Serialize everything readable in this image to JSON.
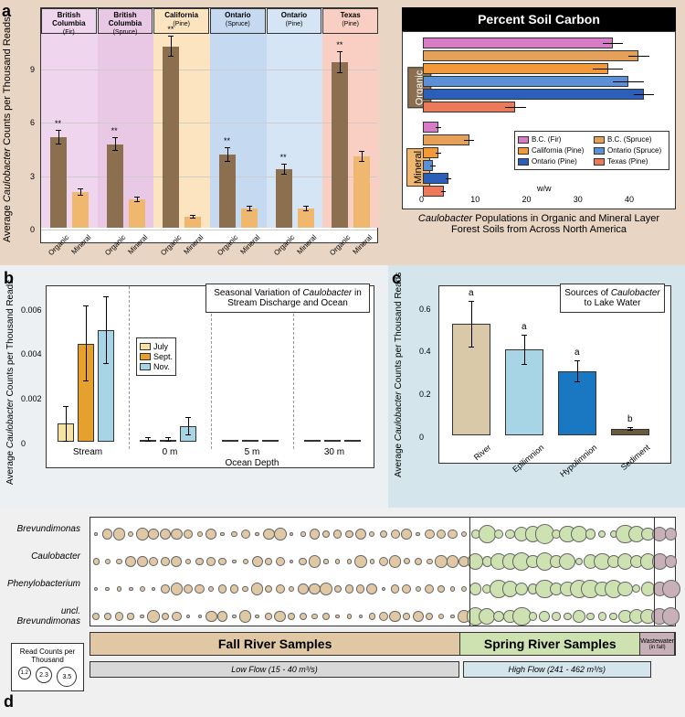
{
  "labels": {
    "a": "a",
    "b": "b",
    "c": "c",
    "d": "d"
  },
  "panelA": {
    "ylabel": "Average Caulobacter Counts per Thousand Reads",
    "yticks": [
      0,
      3,
      6,
      9
    ],
    "facets": [
      {
        "title": "British Columbia",
        "sub": "(Fir)",
        "bg": "#f0d5ee"
      },
      {
        "title": "British Columbia",
        "sub": "(Spruce)",
        "bg": "#e8c8e5"
      },
      {
        "title": "California",
        "sub": "(Pine)",
        "bg": "#fde4c0"
      },
      {
        "title": "Ontario",
        "sub": "(Spruce)",
        "bg": "#c5d9f0"
      },
      {
        "title": "Ontario",
        "sub": "(Pine)",
        "bg": "#d5e5f5"
      },
      {
        "title": "Texas",
        "sub": "(Pine)",
        "bg": "#f8cfc2"
      }
    ],
    "bars": [
      {
        "cat": "Organic",
        "val": 5.1,
        "err": 0.4,
        "sig": "**",
        "col": "#8b6f4e"
      },
      {
        "cat": "Mineral",
        "val": 2.0,
        "err": 0.2,
        "col": "#f0b86e"
      },
      {
        "cat": "Organic",
        "val": 4.7,
        "err": 0.4,
        "sig": "**",
        "col": "#8b6f4e"
      },
      {
        "cat": "Mineral",
        "val": 1.6,
        "err": 0.15,
        "col": "#f0b86e"
      },
      {
        "cat": "Organic",
        "val": 10.2,
        "err": 0.6,
        "sig": "**",
        "col": "#8b6f4e"
      },
      {
        "cat": "Mineral",
        "val": 0.6,
        "err": 0.1,
        "col": "#f0b86e"
      },
      {
        "cat": "Organic",
        "val": 4.1,
        "err": 0.4,
        "sig": "**",
        "col": "#8b6f4e"
      },
      {
        "cat": "Mineral",
        "val": 1.1,
        "err": 0.15,
        "col": "#f0b86e"
      },
      {
        "cat": "Organic",
        "val": 3.3,
        "err": 0.3,
        "sig": "**",
        "col": "#8b6f4e"
      },
      {
        "cat": "Mineral",
        "val": 1.1,
        "err": 0.15,
        "col": "#f0b86e"
      },
      {
        "cat": "Organic",
        "val": 9.3,
        "err": 0.6,
        "sig": "**",
        "col": "#8b6f4e"
      },
      {
        "cat": "Mineral",
        "val": 4.0,
        "err": 0.3,
        "col": "#f0b86e"
      }
    ],
    "right": {
      "title": "Percent Soil Carbon",
      "caption": "Caulobacter Populations in Organic and Mineral Layer Forest Soils from Across North America",
      "groups": [
        "Organic",
        "Mineral"
      ],
      "ww": "w/w",
      "xticks": [
        0,
        10,
        20,
        30,
        40
      ],
      "bars": [
        {
          "g": 0,
          "val": 37,
          "err": 2,
          "col": "#d87bc7"
        },
        {
          "g": 0,
          "val": 42,
          "err": 2,
          "col": "#e5a15a"
        },
        {
          "g": 0,
          "val": 36,
          "err": 3,
          "col": "#f29a3a"
        },
        {
          "g": 0,
          "val": 40,
          "err": 3,
          "col": "#5b8fd6"
        },
        {
          "g": 0,
          "val": 43,
          "err": 2,
          "col": "#2b5fb8"
        },
        {
          "g": 0,
          "val": 18,
          "err": 2,
          "col": "#ea7a5a"
        },
        {
          "g": 1,
          "val": 3,
          "err": 0.5,
          "col": "#d87bc7"
        },
        {
          "g": 1,
          "val": 9,
          "err": 1,
          "col": "#e5a15a"
        },
        {
          "g": 1,
          "val": 3,
          "err": 0.5,
          "col": "#f29a3a"
        },
        {
          "g": 1,
          "val": 2,
          "err": 0.5,
          "col": "#5b8fd6"
        },
        {
          "g": 1,
          "val": 5,
          "err": 0.5,
          "col": "#2b5fb8"
        },
        {
          "g": 1,
          "val": 4,
          "err": 0.5,
          "col": "#ea7a5a"
        }
      ],
      "legend": [
        {
          "l": "B.C. (Fir)",
          "c": "#d87bc7"
        },
        {
          "l": "B.C. (Spruce)",
          "c": "#e5a15a"
        },
        {
          "l": "California (Pine)",
          "c": "#f29a3a"
        },
        {
          "l": "Ontario (Spruce)",
          "c": "#5b8fd6"
        },
        {
          "l": "Ontario (Pine)",
          "c": "#2b5fb8"
        },
        {
          "l": "Texas (Pine)",
          "c": "#ea7a5a"
        }
      ]
    }
  },
  "panelB": {
    "title": "Seasonal Variation of Caulobacter in Stream Discharge and Ocean",
    "ylabel": "Average Caulobacter Counts per Thousand Reads",
    "yticks": [
      "0",
      "0.002",
      "0.004",
      "0.006"
    ],
    "xgroups": [
      "Stream",
      "0 m",
      "5 m",
      "30 m"
    ],
    "xlabel": "Ocean Depth",
    "legend": [
      {
        "l": "July",
        "c": "#f6e3a3"
      },
      {
        "l": "Sept.",
        "c": "#e5a02e"
      },
      {
        "l": "Nov.",
        "c": "#a8d5e5"
      }
    ],
    "series": [
      [
        {
          "v": 0.0008,
          "e": 0.0008
        },
        {
          "v": 0.0044,
          "e": 0.0017
        },
        {
          "v": 0.005,
          "e": 0.0015
        }
      ],
      [
        {
          "v": 0.0001,
          "e": 0.0001
        },
        {
          "v": 0.0001,
          "e": 0.0001
        },
        {
          "v": 0.0007,
          "e": 0.0004
        }
      ],
      [
        {
          "v": 0,
          "e": 0
        },
        {
          "v": 0,
          "e": 0
        },
        {
          "v": 0,
          "e": 0
        }
      ],
      [
        {
          "v": 0,
          "e": 0
        },
        {
          "v": 0,
          "e": 0
        },
        {
          "v": 0,
          "e": 0
        }
      ]
    ]
  },
  "panelC": {
    "title": "Sources of Caulobacter to Lake Water",
    "ylabel": "Average Caulobacter Counts per Thousand Reads",
    "yticks": [
      "0",
      "0.2",
      "0.4",
      "0.6"
    ],
    "cats": [
      "River",
      "Epilimnion",
      "Hypolimnion",
      "Sediment"
    ],
    "bars": [
      {
        "v": 0.52,
        "e": 0.11,
        "c": "#d9c9a8",
        "s": "a"
      },
      {
        "v": 0.4,
        "e": 0.07,
        "c": "#a8d5e5",
        "s": "a"
      },
      {
        "v": 0.3,
        "e": 0.05,
        "c": "#1a78c2",
        "s": "a"
      },
      {
        "v": 0.03,
        "e": 0.01,
        "c": "#6b5a3e",
        "s": "b"
      }
    ]
  },
  "panelD": {
    "taxa": [
      "Brevundimonas",
      "Caulobacter",
      "Phenylobacterium",
      "uncl. Brevundimonas"
    ],
    "readLegend": {
      "title": "Read Counts per Thousand",
      "vals": [
        "1.2",
        "2.3",
        "3.5"
      ]
    },
    "fallLabel": "Fall River Samples",
    "springLabel": "Spring River Samples",
    "wwLabel": "Wastewater",
    "wwSub": "(in fall)",
    "lowFlow": "Low Flow (15 - 40 m³/s)",
    "highFlow": "High Flow (241 - 462 m³/s)",
    "colors": {
      "fall": "#e0c8a5",
      "spring": "#cde2b0",
      "ww": "#c8b0b8"
    },
    "fallCount": 33,
    "springCount": 16,
    "wwCount": 2
  }
}
